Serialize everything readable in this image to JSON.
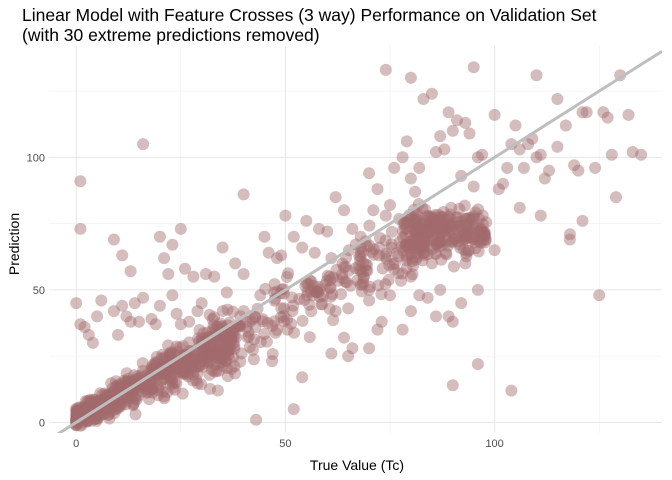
{
  "title": {
    "line1": "Linear Model with Feature Crosses (3 way) Performance on Validation Set",
    "line2": "(with 30 extreme predictions removed)"
  },
  "chart_data": {
    "type": "scatter",
    "title": "Linear Model with Feature Crosses (3 way) Performance on Validation Set (with 30 extreme predictions removed)",
    "xlabel": "True Value (Tc)",
    "ylabel": "Prediction",
    "xlim": [
      -6.5,
      140
    ],
    "ylim": [
      -4,
      142
    ],
    "x_ticks": [
      0,
      50,
      100
    ],
    "y_ticks": [
      0,
      50,
      100
    ],
    "grid": true,
    "legend": "none",
    "point_color": "#a26a6d",
    "reference_line": {
      "type": "identity",
      "slope": 1,
      "intercept": 0,
      "color": "#bebebe"
    },
    "series": [
      {
        "points": [
          [
            0,
            45
          ],
          [
            1,
            91
          ],
          [
            1,
            73
          ],
          [
            16,
            105
          ],
          [
            1,
            37
          ],
          [
            2,
            36
          ],
          [
            3,
            33
          ],
          [
            4,
            30
          ],
          [
            5,
            40
          ],
          [
            6,
            46
          ],
          [
            9,
            42
          ],
          [
            10,
            33
          ],
          [
            11,
            44
          ],
          [
            12,
            40
          ],
          [
            13,
            38
          ],
          [
            14,
            45
          ],
          [
            15,
            38
          ],
          [
            16,
            47
          ],
          [
            18,
            39
          ],
          [
            19,
            37
          ],
          [
            20,
            44
          ],
          [
            21,
            62
          ],
          [
            22,
            56
          ],
          [
            23,
            48
          ],
          [
            24,
            41
          ],
          [
            25,
            37
          ],
          [
            27,
            38
          ],
          [
            29,
            42
          ],
          [
            30,
            45
          ],
          [
            9,
            69
          ],
          [
            11,
            63
          ],
          [
            13,
            57
          ],
          [
            20,
            70
          ],
          [
            23,
            67
          ],
          [
            25,
            73
          ],
          [
            26,
            58
          ],
          [
            28,
            55
          ],
          [
            31,
            56
          ],
          [
            33,
            55
          ],
          [
            35,
            66
          ],
          [
            36,
            49
          ],
          [
            38,
            60
          ],
          [
            40,
            86
          ],
          [
            40,
            56
          ],
          [
            44,
            48
          ],
          [
            45,
            70
          ],
          [
            46,
            64
          ],
          [
            48,
            62
          ],
          [
            49,
            63
          ],
          [
            50,
            78
          ],
          [
            52,
            70
          ],
          [
            54,
            66
          ],
          [
            55,
            76
          ],
          [
            57,
            64
          ],
          [
            58,
            73
          ],
          [
            60,
            72
          ],
          [
            61,
            62
          ],
          [
            62,
            85
          ],
          [
            64,
            80
          ],
          [
            66,
            73
          ],
          [
            68,
            70
          ],
          [
            70,
            94
          ],
          [
            71,
            80
          ],
          [
            72,
            88
          ],
          [
            74,
            78
          ],
          [
            75,
            82
          ],
          [
            76,
            96
          ],
          [
            78,
            100
          ],
          [
            79,
            106
          ],
          [
            80,
            92
          ],
          [
            81,
            87
          ],
          [
            82,
            96
          ],
          [
            83,
            122
          ],
          [
            85,
            124
          ],
          [
            86,
            102
          ],
          [
            87,
            108
          ],
          [
            88,
            103
          ],
          [
            89,
            117
          ],
          [
            90,
            110
          ],
          [
            91,
            114
          ],
          [
            92,
            93
          ],
          [
            93,
            113
          ],
          [
            94,
            109
          ],
          [
            95,
            89
          ],
          [
            96,
            100
          ],
          [
            97,
            101
          ],
          [
            100,
            116
          ],
          [
            101,
            88
          ],
          [
            102,
            90
          ],
          [
            103,
            96
          ],
          [
            104,
            105
          ],
          [
            105,
            112
          ],
          [
            106,
            103
          ],
          [
            107,
            96
          ],
          [
            108,
            105
          ],
          [
            109,
            107
          ],
          [
            110,
            100
          ],
          [
            111,
            101
          ],
          [
            112,
            92
          ],
          [
            113,
            95
          ],
          [
            115,
            104
          ],
          [
            117,
            112
          ],
          [
            119,
            97
          ],
          [
            120,
            95
          ],
          [
            121,
            117
          ],
          [
            122,
            117
          ],
          [
            124,
            96
          ],
          [
            126,
            117
          ],
          [
            127,
            115
          ],
          [
            128,
            101
          ],
          [
            129,
            85
          ],
          [
            130,
            131
          ],
          [
            132,
            116
          ],
          [
            133,
            102
          ],
          [
            135,
            101
          ],
          [
            125,
            48
          ],
          [
            118,
            71
          ],
          [
            118,
            69
          ],
          [
            111,
            78
          ],
          [
            106,
            81
          ],
          [
            74,
            133
          ],
          [
            80,
            130
          ],
          [
            95,
            134
          ],
          [
            110,
            131
          ],
          [
            115,
            122
          ],
          [
            121,
            76
          ],
          [
            96,
            22
          ],
          [
            90,
            14
          ],
          [
            104,
            12
          ],
          [
            52,
            5
          ],
          [
            54,
            17
          ],
          [
            43,
            1
          ],
          [
            66,
            28
          ],
          [
            65,
            25
          ],
          [
            61,
            26
          ],
          [
            64,
            32
          ],
          [
            70,
            28
          ],
          [
            72,
            35
          ],
          [
            70,
            46
          ],
          [
            73,
            38
          ],
          [
            78,
            35
          ],
          [
            80,
            42
          ],
          [
            84,
            47
          ],
          [
            86,
            40
          ],
          [
            89,
            40
          ],
          [
            90,
            38
          ],
          [
            75,
            48
          ],
          [
            70,
            50
          ],
          [
            68,
            52
          ],
          [
            96,
            50
          ],
          [
            93,
            60
          ],
          [
            92,
            45
          ],
          [
            100,
            65
          ],
          [
            85,
            60
          ],
          [
            80,
            55
          ],
          [
            82,
            48
          ],
          [
            87,
            50
          ],
          [
            65,
            43
          ],
          [
            62,
            42
          ]
        ]
      }
    ]
  }
}
